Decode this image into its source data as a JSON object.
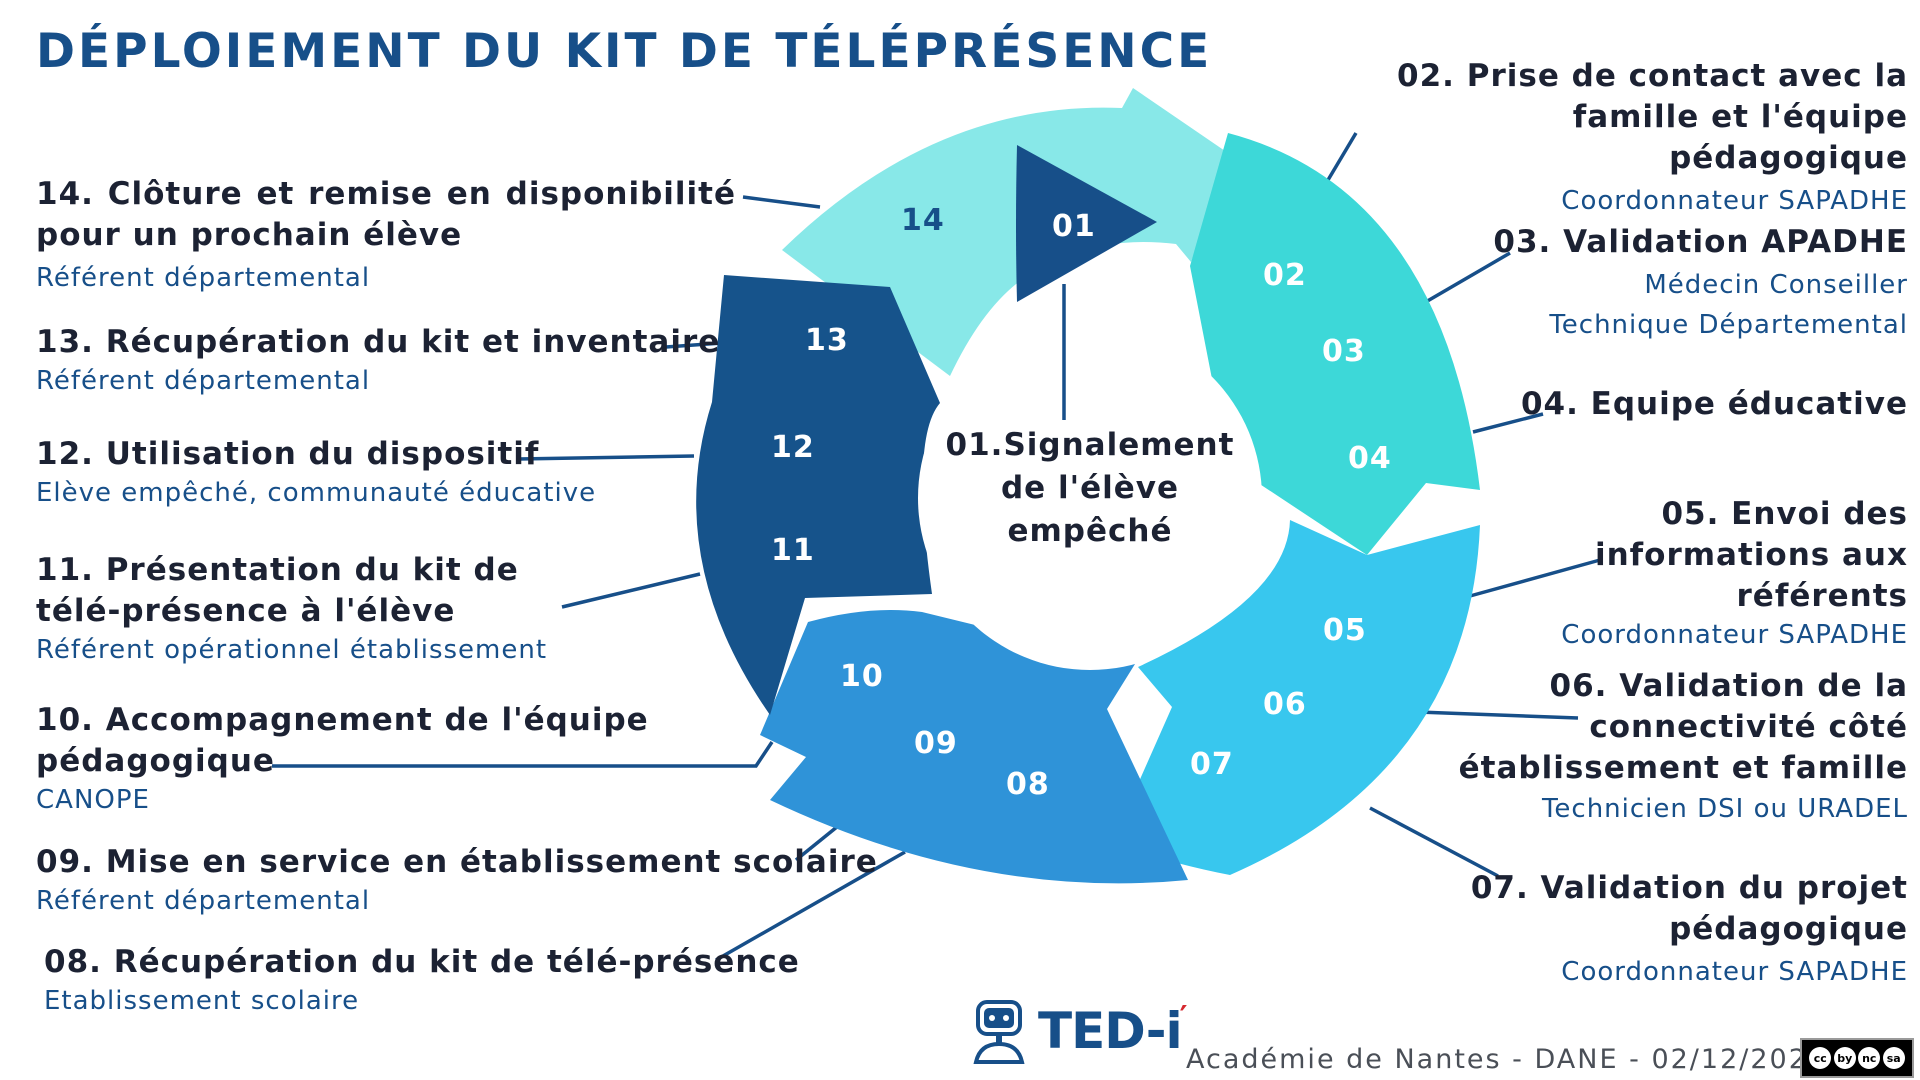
{
  "title": "DÉPLOIEMENT DU KIT DE TÉLÉPRÉSENCE",
  "center_text": [
    "01.Signalement",
    "de l'élève",
    "empêché"
  ],
  "steps": [
    {
      "title": "02. Prise de contact avec la famille et l'équipe pédagogique",
      "role": "Coordonnateur SAPADHE"
    },
    {
      "title": "03. Validation APADHE",
      "role": [
        "Médecin Conseiller",
        "Technique Départemental"
      ]
    },
    {
      "title": "04. Equipe éducative",
      "role": ""
    },
    {
      "title": [
        "05. Envoi des",
        "informations aux",
        "référents"
      ],
      "role": "Coordonnateur SAPADHE"
    },
    {
      "title": [
        "06. Validation de la",
        "connectivité côté",
        "établissement et famille"
      ],
      "role": "Technicien DSI ou URADEL"
    },
    {
      "title": [
        "07. Validation du projet",
        "pédagogique"
      ],
      "role": "Coordonnateur SAPADHE"
    },
    {
      "title": "08. Récupération du kit de télé-présence",
      "role": "Etablissement scolaire"
    },
    {
      "title": "09. Mise en service en établissement scolaire",
      "role": "Référent départemental"
    },
    {
      "title": [
        "10. Accompagnement de l'équipe",
        "pédagogique"
      ],
      "role": "CANOPE"
    },
    {
      "title": [
        "11. Présentation du kit de",
        "télé-présence à l'élève"
      ],
      "role": "Référent opérationnel établissement"
    },
    {
      "title": "12. Utilisation du dispositif",
      "role": "Elève empêché, communauté éducative"
    },
    {
      "title": "13. Récupération du kit et inventaire",
      "role": "Référent départemental"
    },
    {
      "title": "14. Clôture et remise en disponibilité pour un prochain élève",
      "role": "Référent départemental"
    }
  ],
  "segment_numbers": [
    "01",
    "02",
    "03",
    "04",
    "05",
    "06",
    "07",
    "08",
    "09",
    "10",
    "11",
    "12",
    "13",
    "14"
  ],
  "logo_text": "TED-i",
  "footer": "Académie de Nantes - DANE - 02/12/2021",
  "license": [
    "cc",
    "by",
    "nc",
    "sa"
  ],
  "colors": {
    "title": "#174f89",
    "segment_14": "#88e8e8",
    "segment_02_04": "#3dd8d8",
    "segment_05_07": "#38c7ee",
    "segment_08_10": "#2f93d8",
    "segment_11_13": "#16538b",
    "play_icon": "#174f89",
    "connector": "#174f89"
  }
}
